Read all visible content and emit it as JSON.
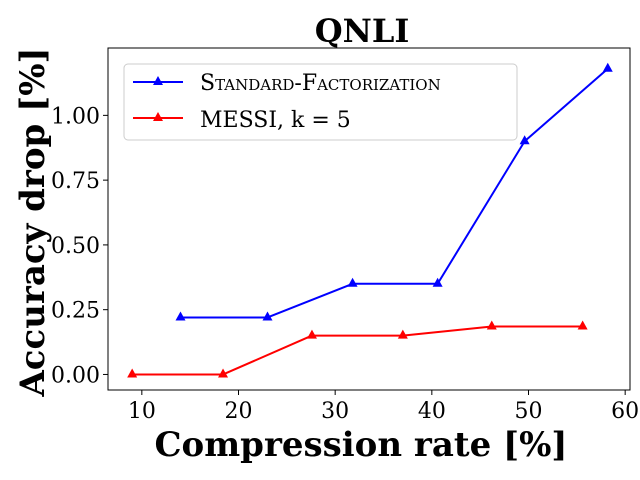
{
  "chart_data": {
    "type": "line",
    "title": "QNLI",
    "xlabel": "Compression rate [%]",
    "ylabel": "Accuracy drop [%]",
    "xlim": [
      6.5,
      60.5
    ],
    "ylim": [
      -0.06,
      1.26
    ],
    "xticks": [
      10,
      20,
      30,
      40,
      50,
      60
    ],
    "xtick_labels": [
      "10",
      "20",
      "30",
      "40",
      "50",
      "60"
    ],
    "yticks": [
      0.0,
      0.25,
      0.5,
      0.75,
      1.0
    ],
    "ytick_labels": [
      "0.00",
      "0.25",
      "0.50",
      "0.75",
      "1.00"
    ],
    "legend_position": "top-left",
    "series": [
      {
        "name": "Standard-Factorization",
        "color": "#0000ff",
        "marker": "triangle-up",
        "x": [
          14.0,
          23.0,
          31.8,
          40.6,
          49.6,
          58.2
        ],
        "y": [
          0.22,
          0.22,
          0.35,
          0.35,
          0.9,
          1.18
        ]
      },
      {
        "name": "MESSI, k = 5",
        "color": "#ff0000",
        "marker": "triangle-up",
        "x": [
          9.0,
          18.4,
          27.6,
          37.0,
          46.2,
          55.6
        ],
        "y": [
          0.0,
          0.0,
          0.15,
          0.15,
          0.185,
          0.185
        ]
      }
    ]
  }
}
